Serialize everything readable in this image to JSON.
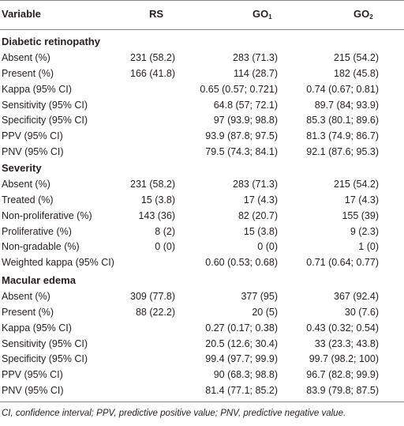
{
  "headers": {
    "variable": "Variable",
    "rs": "RS",
    "go1_base": "GO",
    "go1_sub": "1",
    "go2_base": "GO",
    "go2_sub": "2"
  },
  "sections": [
    {
      "title": "Diabetic retinopathy",
      "rows": [
        {
          "label": "Absent (%)",
          "rs": "231 (58.2)",
          "go1": "283 (71.3)",
          "go2": "215 (54.2)"
        },
        {
          "label": "Present (%)",
          "rs": "166 (41.8)",
          "go1": "114 (28.7)",
          "go2": "182 (45.8)"
        },
        {
          "label": "Kappa (95% CI)",
          "rs": "",
          "go1": "0.65 (0.57; 0.721)",
          "go2": "0.74 (0.67; 0.81)"
        },
        {
          "label": "Sensitivity (95% CI)",
          "rs": "",
          "go1": "64.8 (57; 72.1)",
          "go2": "89.7 (84; 93.9)"
        },
        {
          "label": "Specificity (95% CI)",
          "rs": "",
          "go1": "97 (93.9; 98.8)",
          "go2": "85.3 (80.1; 89.6)"
        },
        {
          "label": "PPV (95% CI)",
          "rs": "",
          "go1": "93.9 (87.8; 97.5)",
          "go2": "81.3 (74.9; 86.7)"
        },
        {
          "label": "PNV (95% CI)",
          "rs": "",
          "go1": "79.5 (74.3; 84.1)",
          "go2": "92.1 (87.6; 95.3)"
        }
      ]
    },
    {
      "title": "Severity",
      "rows": [
        {
          "label": "Absent (%)",
          "rs": "231 (58.2)",
          "go1": "283 (71.3)",
          "go2": "215 (54.2)"
        },
        {
          "label": "Treated (%)",
          "rs": "15 (3.8)",
          "go1": "17 (4.3)",
          "go2": "17 (4.3)"
        },
        {
          "label": "Non-proliferative (%)",
          "rs": "143 (36)",
          "go1": "82 (20.7)",
          "go2": "155 (39)"
        },
        {
          "label": "Proliferative (%)",
          "rs": "8 (2)",
          "go1": "15 (3.8)",
          "go2": "9 (2.3)"
        },
        {
          "label": "Non-gradable (%)",
          "rs": "0 (0)",
          "go1": "0 (0)",
          "go2": "1 (0)"
        },
        {
          "label": "Weighted kappa (95% CI)",
          "rs": "",
          "go1": "0.60 (0.53; 0.68)",
          "go2": "0.71 (0.64; 0.77)"
        }
      ]
    },
    {
      "title": "Macular edema",
      "rows": [
        {
          "label": "Absent (%)",
          "rs": "309 (77.8)",
          "go1": "377 (95)",
          "go2": "367 (92.4)"
        },
        {
          "label": "Present (%)",
          "rs": "88 (22.2)",
          "go1": "20 (5)",
          "go2": "30 (7.6)"
        },
        {
          "label": "Kappa (95% CI)",
          "rs": "",
          "go1": "0.27 (0.17; 0.38)",
          "go2": "0.43 (0.32; 0.54)"
        },
        {
          "label": "Sensitivity (95% CI)",
          "rs": "",
          "go1": "20.5 (12.6; 30.4)",
          "go2": "33 (23.3; 43.8)"
        },
        {
          "label": "Specificity (95% CI)",
          "rs": "",
          "go1": "99.4 (97.7; 99.9)",
          "go2": "99.7 (98.2; 100)"
        },
        {
          "label": "PPV (95% CI)",
          "rs": "",
          "go1": "90 (68.3; 98.8)",
          "go2": "96.7 (82.8; 99.9)"
        },
        {
          "label": "PNV (95% CI)",
          "rs": "",
          "go1": "81.4 (77.1; 85.2)",
          "go2": "83.9 (79.8; 87.5)"
        }
      ]
    }
  ],
  "footnote": "CI, confidence interval; PPV, predictive positive value; PNV, predictive negative value."
}
